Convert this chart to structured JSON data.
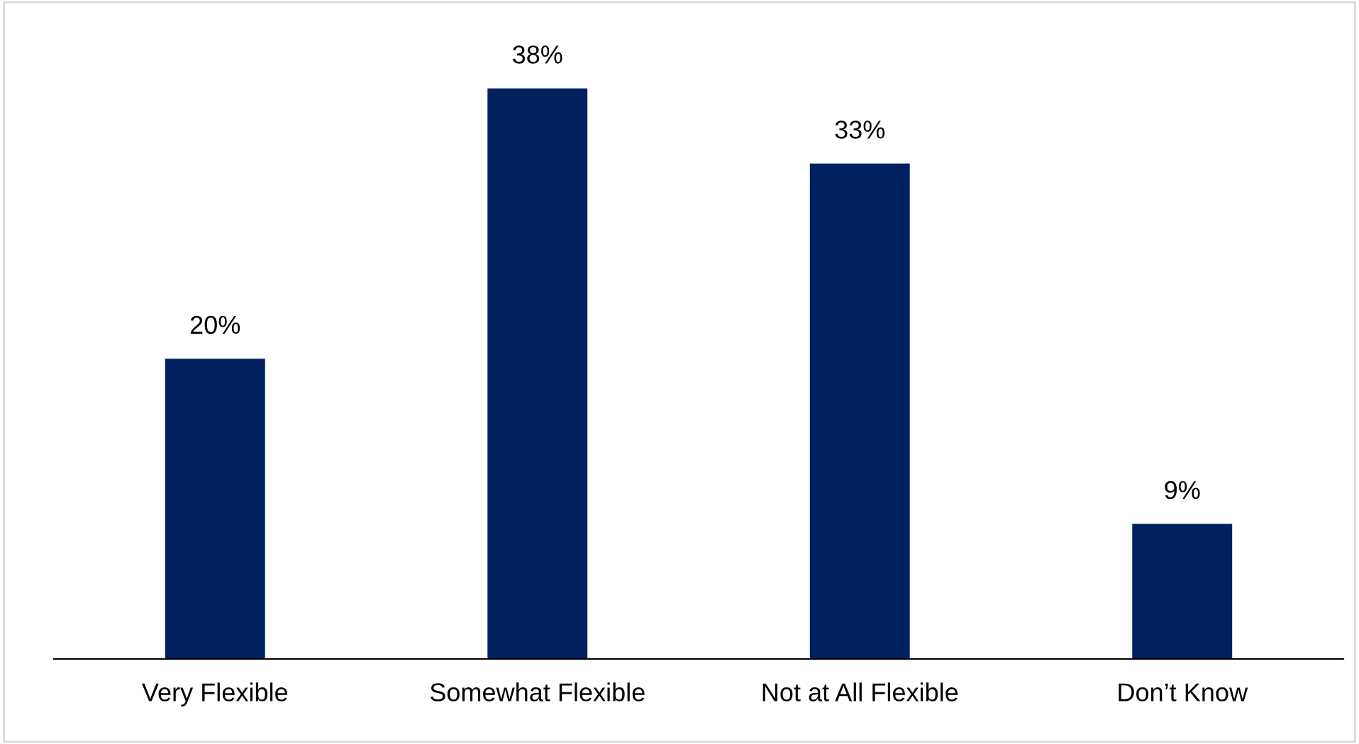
{
  "chart_data": {
    "type": "bar",
    "categories": [
      "Very Flexible",
      "Somewhat Flexible",
      "Not at All Flexible",
      "Don’t Know"
    ],
    "values": [
      20,
      38,
      33,
      9
    ],
    "value_labels": [
      "20%",
      "38%",
      "33%",
      "9%"
    ],
    "color": "#002060",
    "grid": false,
    "legend": false
  }
}
